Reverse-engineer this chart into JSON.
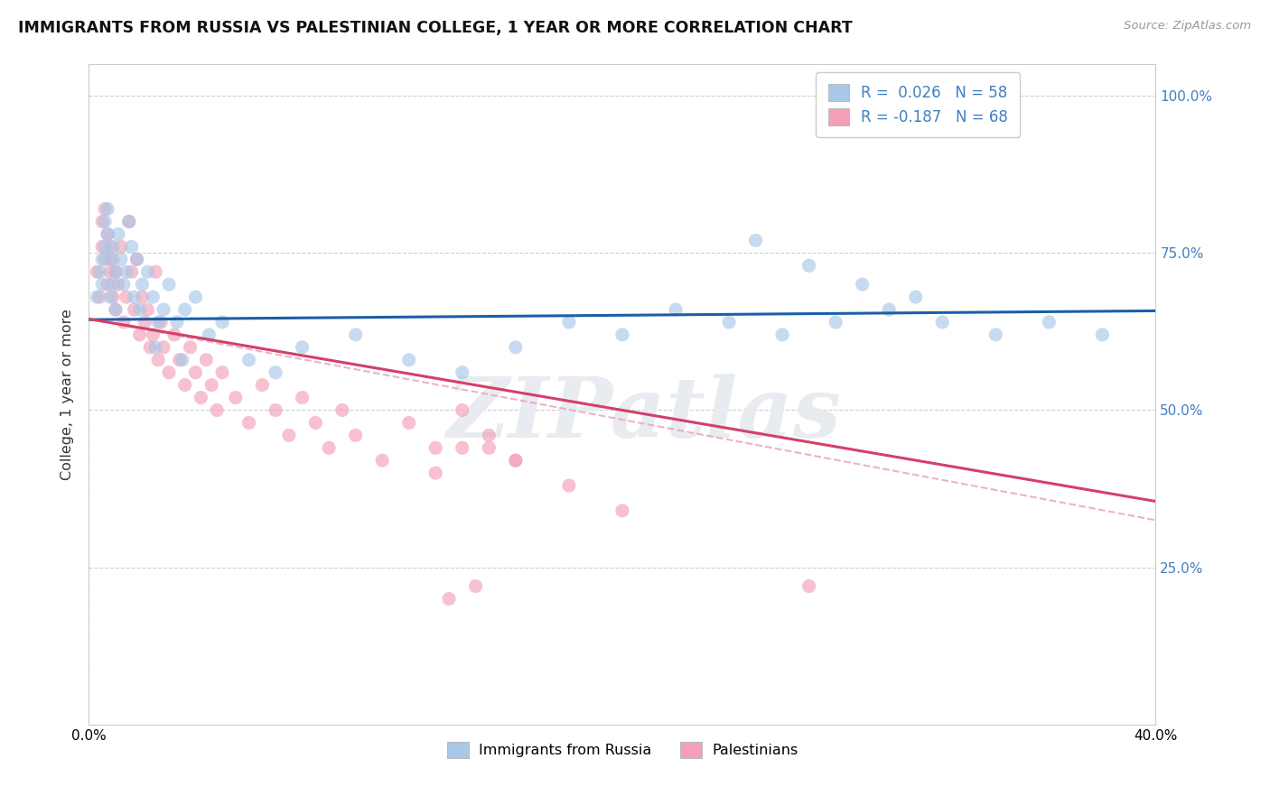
{
  "title": "IMMIGRANTS FROM RUSSIA VS PALESTINIAN COLLEGE, 1 YEAR OR MORE CORRELATION CHART",
  "source": "Source: ZipAtlas.com",
  "ylabel": "College, 1 year or more",
  "xlim": [
    0.0,
    0.4
  ],
  "ylim": [
    0.0,
    1.05
  ],
  "watermark": "ZIPatlas",
  "legend_R1": "0.026",
  "legend_N1": "58",
  "legend_R2": "-0.187",
  "legend_N2": "68",
  "color_blue": "#a8c8e8",
  "color_pink": "#f4a0b8",
  "line_blue": "#1a5fa8",
  "line_pink": "#d4406a",
  "line_dashed_color": "#e8a0b8",
  "right_tick_color": "#4080c0",
  "russia_x": [
    0.003,
    0.004,
    0.005,
    0.005,
    0.006,
    0.006,
    0.007,
    0.007,
    0.008,
    0.008,
    0.009,
    0.009,
    0.01,
    0.01,
    0.011,
    0.012,
    0.013,
    0.014,
    0.015,
    0.016,
    0.017,
    0.018,
    0.019,
    0.02,
    0.022,
    0.024,
    0.026,
    0.028,
    0.03,
    0.033,
    0.036,
    0.04,
    0.045,
    0.05,
    0.06,
    0.07,
    0.08,
    0.1,
    0.12,
    0.14,
    0.16,
    0.18,
    0.2,
    0.22,
    0.24,
    0.26,
    0.28,
    0.3,
    0.32,
    0.34,
    0.36,
    0.38,
    0.25,
    0.27,
    0.29,
    0.31,
    0.025,
    0.035
  ],
  "russia_y": [
    0.68,
    0.72,
    0.7,
    0.74,
    0.76,
    0.8,
    0.78,
    0.82,
    0.68,
    0.74,
    0.7,
    0.76,
    0.72,
    0.66,
    0.78,
    0.74,
    0.7,
    0.72,
    0.8,
    0.76,
    0.68,
    0.74,
    0.66,
    0.7,
    0.72,
    0.68,
    0.64,
    0.66,
    0.7,
    0.64,
    0.66,
    0.68,
    0.62,
    0.64,
    0.58,
    0.56,
    0.6,
    0.62,
    0.58,
    0.56,
    0.6,
    0.64,
    0.62,
    0.66,
    0.64,
    0.62,
    0.64,
    0.66,
    0.64,
    0.62,
    0.64,
    0.62,
    0.77,
    0.73,
    0.7,
    0.68,
    0.6,
    0.58
  ],
  "palest_x": [
    0.003,
    0.004,
    0.005,
    0.005,
    0.006,
    0.006,
    0.007,
    0.007,
    0.008,
    0.008,
    0.009,
    0.009,
    0.01,
    0.01,
    0.011,
    0.012,
    0.013,
    0.014,
    0.015,
    0.016,
    0.017,
    0.018,
    0.019,
    0.02,
    0.021,
    0.022,
    0.023,
    0.024,
    0.025,
    0.026,
    0.027,
    0.028,
    0.03,
    0.032,
    0.034,
    0.036,
    0.038,
    0.04,
    0.042,
    0.044,
    0.046,
    0.048,
    0.05,
    0.055,
    0.06,
    0.065,
    0.07,
    0.075,
    0.08,
    0.085,
    0.09,
    0.095,
    0.1,
    0.11,
    0.12,
    0.13,
    0.14,
    0.15,
    0.16,
    0.18,
    0.2,
    0.14,
    0.27,
    0.15,
    0.16,
    0.13,
    0.145,
    0.135
  ],
  "palest_y": [
    0.72,
    0.68,
    0.8,
    0.76,
    0.82,
    0.74,
    0.78,
    0.7,
    0.76,
    0.72,
    0.68,
    0.74,
    0.66,
    0.72,
    0.7,
    0.76,
    0.64,
    0.68,
    0.8,
    0.72,
    0.66,
    0.74,
    0.62,
    0.68,
    0.64,
    0.66,
    0.6,
    0.62,
    0.72,
    0.58,
    0.64,
    0.6,
    0.56,
    0.62,
    0.58,
    0.54,
    0.6,
    0.56,
    0.52,
    0.58,
    0.54,
    0.5,
    0.56,
    0.52,
    0.48,
    0.54,
    0.5,
    0.46,
    0.52,
    0.48,
    0.44,
    0.5,
    0.46,
    0.42,
    0.48,
    0.44,
    0.5,
    0.46,
    0.42,
    0.38,
    0.34,
    0.44,
    0.22,
    0.44,
    0.42,
    0.4,
    0.22,
    0.2
  ],
  "russia_line_x0": 0.0,
  "russia_line_y0": 0.644,
  "russia_line_x1": 0.4,
  "russia_line_y1": 0.658,
  "palest_line_x0": 0.0,
  "palest_line_y0": 0.645,
  "palest_line_x1": 0.4,
  "palest_line_y1": 0.355,
  "dashed_line_x0": 0.0,
  "dashed_line_y0": 0.645,
  "dashed_line_x1": 0.4,
  "dashed_line_y1": 0.325
}
